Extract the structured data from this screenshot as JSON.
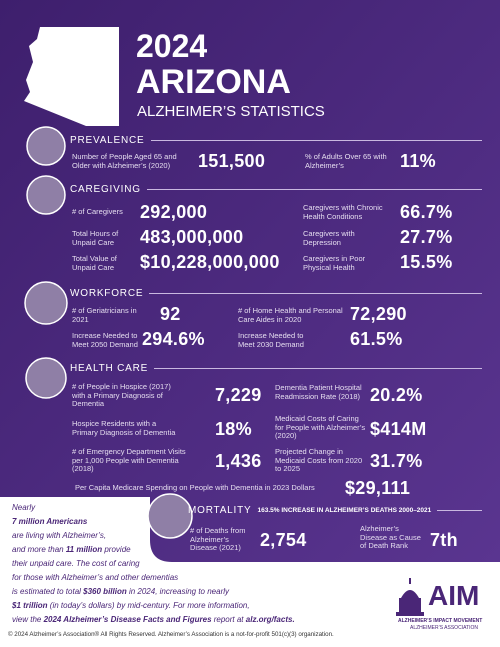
{
  "header": {
    "year": "2024",
    "state": "ARIZONA",
    "subtitle": "ALZHEIMER’S STATISTICS"
  },
  "sections": [
    {
      "title": "PREVALENCE",
      "items": [
        {
          "label": "Number of People Aged 65 and Older with Alzheimer’s (2020)",
          "value": "151,500"
        },
        {
          "label": "% of Adults Over 65 with Alzheimer’s",
          "value": "11%"
        }
      ]
    },
    {
      "title": "CAREGIVING",
      "items": [
        {
          "label": "# of Caregivers",
          "value": "292,000"
        },
        {
          "label": "Total Hours of Unpaid Care",
          "value": "483,000,000"
        },
        {
          "label": "Total Value of Unpaid Care",
          "value": "$10,228,000,000"
        },
        {
          "label": "Caregivers with Chronic Health Conditions",
          "value": "66.7%"
        },
        {
          "label": "Caregivers with Depression",
          "value": "27.7%"
        },
        {
          "label": "Caregivers in Poor Physical Health",
          "value": "15.5%"
        }
      ]
    },
    {
      "title": "WORKFORCE",
      "items": [
        {
          "label": "# of Geriatricians in 2021",
          "value": "92"
        },
        {
          "label": "# of Home Health and Personal Care Aides in 2020",
          "value": "72,290"
        },
        {
          "label": "Increase Needed to Meet 2050 Demand",
          "value": "294.6%"
        },
        {
          "label": "Increase Needed to Meet 2030 Demand",
          "value": "61.5%"
        }
      ]
    },
    {
      "title": "HEALTH CARE",
      "items": [
        {
          "label": "# of People in Hospice (2017) with a Primary Diagnosis of Dementia",
          "value": "7,229"
        },
        {
          "label": "Hospice Residents with a Primary Diagnosis of Dementia",
          "value": "18%"
        },
        {
          "label": "# of Emergency Department Visits per 1,000 People with Dementia (2018)",
          "value": "1,436"
        },
        {
          "label": "Dementia Patient Hospital Readmission Rate (2018)",
          "value": "20.2%"
        },
        {
          "label": "Medicaid Costs of Caring for People with Alzheimer’s (2020)",
          "value": "$414M"
        },
        {
          "label": "Projected Change in Medicaid Costs from 2020 to 2025",
          "value": "31.7%"
        },
        {
          "label": "Per Capita Medicare Spending on People with Dementia in 2023 Dollars",
          "value": "$29,111"
        }
      ]
    },
    {
      "title": "MORTALITY",
      "note": "163.5% INCREASE IN ALZHEIMER’S DEATHS 2000–2021",
      "items": [
        {
          "label": "# of Deaths from Alzheimer’s Disease (2021)",
          "value": "2,754"
        },
        {
          "label": "Alzheimer’s Disease as Cause of Death Rank",
          "value": "7th"
        }
      ]
    }
  ],
  "footer_note": {
    "lines": [
      [
        {
          "text": "Nearly"
        }
      ],
      [
        {
          "text": "7 million Americans",
          "bold": true
        }
      ],
      [
        {
          "text": "are living with Alzheimer’s,"
        }
      ],
      [
        {
          "text": "and more than "
        },
        {
          "text": "11 million",
          "bold": true
        },
        {
          "text": " provide"
        }
      ],
      [
        {
          "text": "their unpaid care. The cost of caring"
        }
      ],
      [
        {
          "text": "for those with Alzheimer’s and other dementias"
        }
      ],
      [
        {
          "text": "is estimated to total "
        },
        {
          "text": "$360 billion",
          "bold": true
        },
        {
          "text": " in 2024, increasing to nearly"
        }
      ],
      [
        {
          "text": "$1 trillion",
          "bold": true
        },
        {
          "text": " (in today’s dollars) by mid-century. For more information,"
        }
      ],
      [
        {
          "text": "view the "
        },
        {
          "text": "2024 Alzheimer’s Disease Facts and Figures",
          "bold": true
        },
        {
          "text": " report at "
        },
        {
          "text": "alz.org/facts.",
          "bold": true
        }
      ]
    ]
  },
  "logo": {
    "mark": "AIM",
    "name": "ALZHEIMER’S IMPACT MOVEMENT",
    "org": "ALZHEIMER’S ASSOCIATION"
  },
  "copyright": "© 2024 Alzheimer’s Association® All Rights Reserved. Alzheimer’s Association is a not-for-profit 501(c)(3) organization."
}
